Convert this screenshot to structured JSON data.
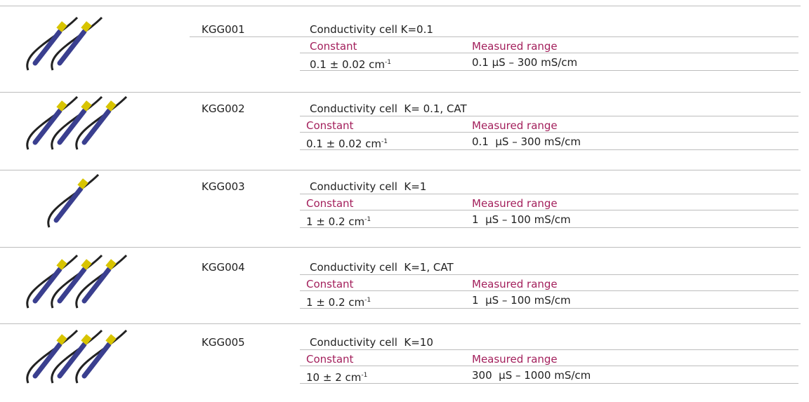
{
  "header": {
    "constant_label": "Constant",
    "range_label": "Measured range"
  },
  "rows": [
    {
      "code": "KGG001",
      "title": "Conductivity cell K=0.1",
      "constant": "0.1 ± 0.02 cm",
      "constant_exp": "-1",
      "range": "0.1 μS – 300 mS/cm"
    },
    {
      "code": "KGG002",
      "title": "Conductivity cell  K= 0.1, CAT",
      "constant": "0.1 ± 0.02 cm",
      "constant_exp": "-1",
      "range": "0.1  μS – 300 mS/cm"
    },
    {
      "code": "KGG003",
      "title": "Conductivity cell  K=1",
      "constant": "1 ± 0.2 cm",
      "constant_exp": "-1",
      "range": "1  μS – 100 mS/cm"
    },
    {
      "code": "KGG004",
      "title": "Conductivity cell  K=1, CAT",
      "constant": "1 ± 0.2 cm",
      "constant_exp": "-1",
      "range": "1  μS – 100 mS/cm"
    },
    {
      "code": "KGG005",
      "title": "Conductivity cell  K=10",
      "constant": "10 ± 2 cm",
      "constant_exp": "-1",
      "range": "300  μS – 1000 mS/cm"
    }
  ]
}
